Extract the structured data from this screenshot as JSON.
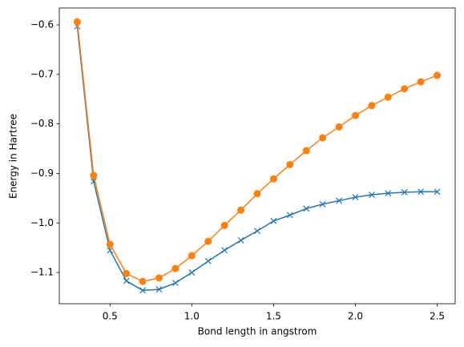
{
  "chart_data": {
    "type": "line",
    "xlabel": "Bond length in angstrom",
    "ylabel": "Energy in Hartree",
    "x": [
      0.3,
      0.4,
      0.5,
      0.6,
      0.7,
      0.8,
      0.9,
      1.0,
      1.1,
      1.2,
      1.3,
      1.4,
      1.5,
      1.6,
      1.7,
      1.8,
      1.9,
      2.0,
      2.1,
      2.2,
      2.3,
      2.4,
      2.5
    ],
    "series": [
      {
        "color": "#1f77b4",
        "marker": "x",
        "values": [
          -0.603,
          -0.916,
          -1.055,
          -1.117,
          -1.136,
          -1.134,
          -1.121,
          -1.1,
          -1.077,
          -1.055,
          -1.035,
          -1.016,
          -0.996,
          -0.984,
          -0.971,
          -0.962,
          -0.955,
          -0.948,
          -0.943,
          -0.94,
          -0.938,
          -0.937,
          -0.937
        ]
      },
      {
        "color": "#ff7f0e",
        "marker": "o",
        "values": [
          -0.594,
          -0.904,
          -1.043,
          -1.102,
          -1.118,
          -1.111,
          -1.092,
          -1.066,
          -1.037,
          -1.005,
          -0.974,
          -0.941,
          -0.911,
          -0.882,
          -0.854,
          -0.828,
          -0.806,
          -0.783,
          -0.763,
          -0.746,
          -0.729,
          -0.715,
          -0.702
        ]
      }
    ],
    "xlim": [
      0.19,
      2.61
    ],
    "xticks": [
      0.5,
      {
        "value": 1,
        "label": "1.0"
      },
      1.5,
      {
        "value": 2,
        "label": "2.0"
      },
      2.5
    ],
    "ylim": [
      -1.163,
      -0.566
    ],
    "yticks": [
      {
        "value": -0.6,
        "label": "−0.6"
      },
      {
        "value": -0.7,
        "label": "−0.7"
      },
      {
        "value": -0.8,
        "label": "−0.8"
      },
      {
        "value": -0.9,
        "label": "−0.9"
      },
      {
        "value": -1.0,
        "label": "−1.0"
      },
      {
        "value": -1.1,
        "label": "−1.1"
      }
    ],
    "grid": false
  }
}
